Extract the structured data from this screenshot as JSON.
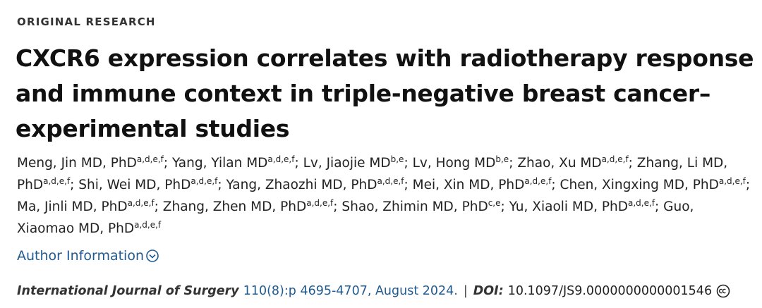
{
  "header": {
    "section": "ORIGINAL RESEARCH"
  },
  "title_lines": [
    "CXCR6 expression correlates with radiotherapy response",
    "and immune context in triple-negative breast cancer–",
    "experimental studies"
  ],
  "author_separator": "; ",
  "authors": [
    {
      "name": "Meng, Jin MD, PhD",
      "affiliations": "a,d,e,f"
    },
    {
      "name": "Yang, Yilan MD",
      "affiliations": "a,d,e,f"
    },
    {
      "name": "Lv, Jiaojie MD",
      "affiliations": "b,e"
    },
    {
      "name": "Lv, Hong MD",
      "affiliations": "b,e"
    },
    {
      "name": "Zhao, Xu MD",
      "affiliations": "a,d,e,f"
    },
    {
      "name": "Zhang, Li MD, PhD",
      "affiliations": "a,d,e,f"
    },
    {
      "name": "Shi, Wei MD, PhD",
      "affiliations": "a,d,e,f"
    },
    {
      "name": "Yang, Zhaozhi MD, PhD",
      "affiliations": "a,d,e,f"
    },
    {
      "name": "Mei, Xin MD, PhD",
      "affiliations": "a,d,e,f"
    },
    {
      "name": "Chen, Xingxing MD, PhD",
      "affiliations": "a,d,e,f"
    },
    {
      "name": "Ma, Jinli MD, PhD",
      "affiliations": "a,d,e,f"
    },
    {
      "name": "Zhang, Zhen MD, PhD",
      "affiliations": "a,d,e,f"
    },
    {
      "name": "Shao, Zhimin MD, PhD",
      "affiliations": "c,e"
    },
    {
      "name": "Yu, Xiaoli MD, PhD",
      "affiliations": "a,d,e,f"
    },
    {
      "name": "Guo, Xiaomao MD, PhD",
      "affiliations": "a,d,e,f"
    }
  ],
  "author_information": "Author Information",
  "citation": {
    "journal": "International Journal of Surgery",
    "volume_pages_date": "110(8):p 4695-4707, August 2024.",
    "separator": "|",
    "doi_label": "DOI:",
    "doi": "10.1097/JS9.0000000000001546"
  }
}
